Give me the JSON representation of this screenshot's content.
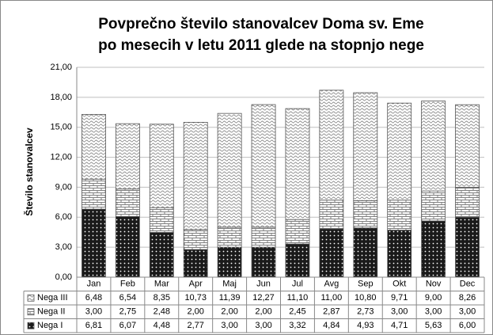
{
  "chart_data": {
    "type": "stacked-bar",
    "title": [
      "Povprečno število stanovalcev Doma sv. Eme",
      "po mesecih v letu 2011 glede na stopnjo nege"
    ],
    "ylabel": "Število stanovalcev",
    "categories": [
      "Jan",
      "Feb",
      "Mar",
      "Apr",
      "Maj",
      "Jun",
      "Jul",
      "Avg",
      "Sep",
      "Okt",
      "Nov",
      "Dec"
    ],
    "series": [
      {
        "name": "Nega I",
        "color": "#1a1a1a",
        "values": [
          6.81,
          6.07,
          4.48,
          2.77,
          3.0,
          3.0,
          3.32,
          4.84,
          4.93,
          4.71,
          5.63,
          6.0
        ],
        "value_labels": [
          "6,81",
          "6,07",
          "4,48",
          "2,77",
          "3,00",
          "3,00",
          "3,32",
          "4,84",
          "4,93",
          "4,71",
          "5,63",
          "6,00"
        ]
      },
      {
        "name": "Nega II",
        "color": "#7f7f7f",
        "values": [
          3.0,
          2.75,
          2.48,
          2.0,
          2.0,
          2.0,
          2.45,
          2.87,
          2.73,
          3.0,
          3.0,
          3.0
        ],
        "value_labels": [
          "3,00",
          "2,75",
          "2,48",
          "2,00",
          "2,00",
          "2,00",
          "2,45",
          "2,87",
          "2,73",
          "3,00",
          "3,00",
          "3,00"
        ]
      },
      {
        "name": "Nega III",
        "color": "#8c8c8c",
        "values": [
          6.48,
          6.54,
          8.35,
          10.73,
          11.39,
          12.27,
          11.1,
          11.0,
          10.8,
          9.71,
          9.0,
          8.26
        ],
        "value_labels": [
          "6,48",
          "6,54",
          "8,35",
          "10,73",
          "11,39",
          "12,27",
          "11,10",
          "11,00",
          "10,80",
          "9,71",
          "9,00",
          "8,26"
        ]
      }
    ],
    "ylim": [
      0,
      21
    ],
    "yticks": [
      {
        "value": 0,
        "label": "0,00"
      },
      {
        "value": 3,
        "label": "3,00"
      },
      {
        "value": 6,
        "label": "6,00"
      },
      {
        "value": 9,
        "label": "9,00"
      },
      {
        "value": 12,
        "label": "12,00"
      },
      {
        "value": 15,
        "label": "15,00"
      },
      {
        "value": 18,
        "label": "18,00"
      },
      {
        "value": 21,
        "label": "21,00"
      }
    ],
    "grid": true
  }
}
